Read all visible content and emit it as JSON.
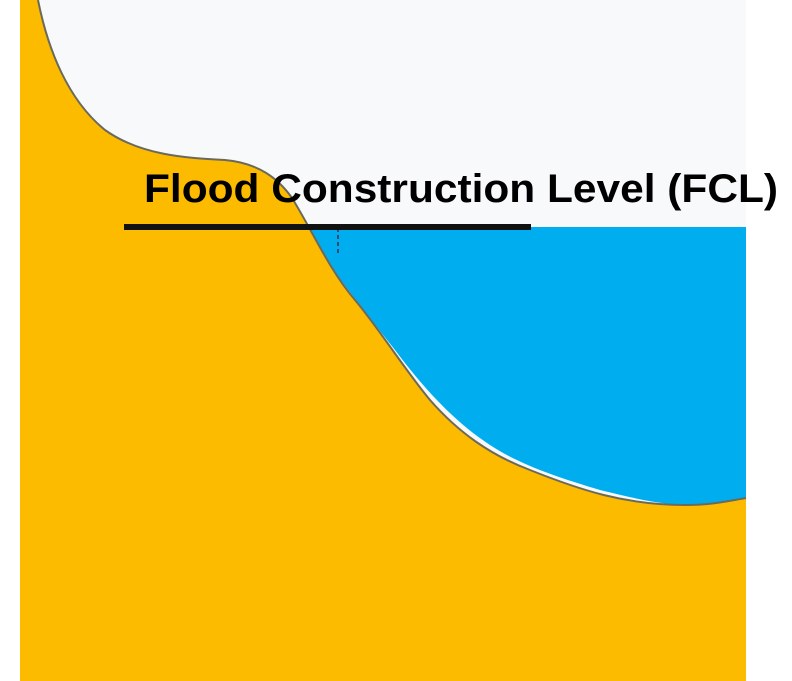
{
  "diagram": {
    "label": "Flood Construction Level (FCL)",
    "colors": {
      "ground": "#FDBB00",
      "water": "#00AEEF",
      "sky": "#F8F9FB",
      "background": "#FFFFFF",
      "outline": "#6B6A5A",
      "fcl_line": "#111111",
      "marker": "#2A4B73",
      "label_text": "#000000"
    }
  }
}
